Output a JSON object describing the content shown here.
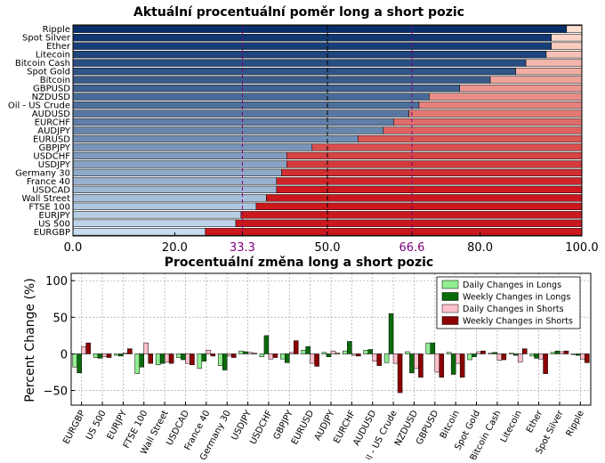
{
  "chart_data": [
    {
      "type": "bar",
      "orientation": "horizontal",
      "stacked": true,
      "title": "Aktuální procentuální poměr long a short pozic",
      "xlim": [
        0,
        100
      ],
      "xticks": [
        "0.0",
        "20.0",
        "33.3",
        "50.0",
        "66.6",
        "80.0",
        "100.0"
      ],
      "xtick_values": [
        0,
        20,
        33.3,
        50,
        66.6,
        80,
        100
      ],
      "highlight_ticks": [
        "33.3",
        "66.6"
      ],
      "reference_lines": [
        33.3,
        50,
        66.6
      ],
      "categories": [
        "Ripple",
        "Spot Silver",
        "Ether",
        "Litecoin",
        "Bitcoin Cash",
        "Spot Gold",
        "Bitcoin",
        "GBPUSD",
        "NZDUSD",
        "Oil - US Crude",
        "AUDUSD",
        "EURCHF",
        "AUDJPY",
        "EURUSD",
        "GBPJPY",
        "USDCHF",
        "USDJPY",
        "Germany 30",
        "France 40",
        "USDCAD",
        "Wall Street",
        "FTSE 100",
        "EURJPY",
        "US 500",
        "EURGBP"
      ],
      "series": [
        {
          "values": [
            97,
            94,
            94,
            93,
            89,
            87,
            82,
            76,
            70,
            68,
            66,
            63,
            61,
            56,
            47,
            42,
            42,
            41,
            40,
            40,
            38,
            36,
            33,
            32,
            26
          ]
        },
        {
          "values": [
            3,
            6,
            6,
            7,
            11,
            13,
            18,
            24,
            30,
            32,
            34,
            37,
            39,
            44,
            53,
            58,
            58,
            59,
            60,
            60,
            62,
            64,
            67,
            68,
            74
          ]
        }
      ]
    },
    {
      "type": "bar",
      "title": "Procentuální změna long a short pozic",
      "ylabel": "Percent Change (%)",
      "ylim": [
        -70,
        110
      ],
      "yticks": [
        "100",
        "50",
        "0",
        "−50"
      ],
      "ytick_values": [
        100,
        50,
        0,
        -50
      ],
      "legend_position": "top-right",
      "categories": [
        "EURGBP",
        "US 500",
        "EURJPY",
        "FTSE 100",
        "Wall Street",
        "USDCAD",
        "France 40",
        "Germany 30",
        "USDJPY",
        "USDCHF",
        "GBPJPY",
        "EURUSD",
        "AUDJPY",
        "EURCHF",
        "AUDUSD",
        "Oil - US Crude",
        "NZDUSD",
        "GBPUSD",
        "Bitcoin",
        "Spot Gold",
        "Bitcoin Cash",
        "Litecoin",
        "Ether",
        "Spot Silver",
        "Ripple"
      ],
      "series": [
        {
          "name": "Daily Changes in Longs",
          "color": "#90ee90",
          "values": [
            -18,
            -5,
            -2,
            -27,
            -15,
            -5,
            -20,
            -16,
            4,
            -4,
            -7,
            5,
            2,
            4,
            5,
            -12,
            3,
            15,
            2,
            -8,
            1,
            1,
            -3,
            2,
            -1
          ]
        },
        {
          "name": "Weekly Changes in Longs",
          "color": "#0a6b0a",
          "values": [
            -26,
            -6,
            -3,
            -18,
            -13,
            -8,
            -10,
            -22,
            3,
            25,
            -12,
            10,
            -4,
            17,
            6,
            55,
            -26,
            15,
            -28,
            -4,
            2,
            -2,
            -6,
            4,
            -2
          ]
        },
        {
          "name": "Daily Changes in Shorts",
          "color": "#ffc0cb",
          "values": [
            10,
            -4,
            1,
            15,
            -11,
            -13,
            5,
            -3,
            2,
            -7,
            2,
            -13,
            4,
            -2,
            -10,
            -13,
            -20,
            -25,
            -13,
            3,
            -9,
            -11,
            -7,
            3,
            -7
          ]
        },
        {
          "name": "Weekly Changes in Shorts",
          "color": "#8b0000",
          "values": [
            15,
            -5,
            7,
            -13,
            -13,
            -15,
            -3,
            -5,
            1,
            -5,
            18,
            -17,
            1,
            -3,
            -16,
            -53,
            -32,
            -32,
            -32,
            4,
            -8,
            7,
            -27,
            4,
            -12
          ]
        }
      ]
    }
  ]
}
